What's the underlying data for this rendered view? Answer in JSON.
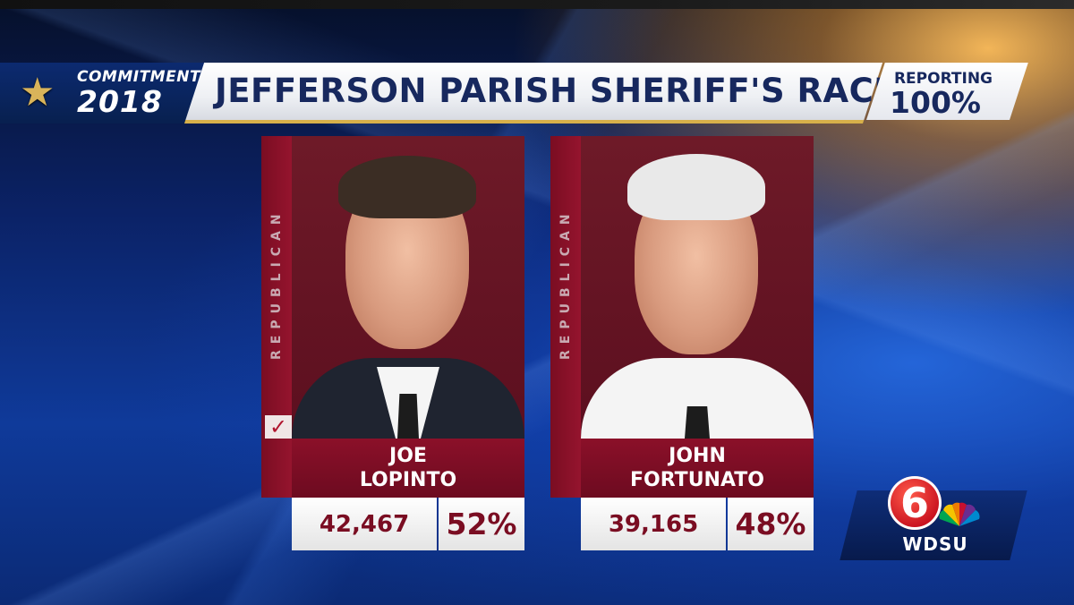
{
  "header": {
    "brand_line1": "COMMITMENT",
    "brand_line2": "2018",
    "title": "JEFFERSON PARISH SHERIFF'S RACE",
    "reporting_label": "REPORTING",
    "reporting_value": "100%"
  },
  "candidates": [
    {
      "party": "REPUBLICAN",
      "first_name": "JOE",
      "last_name": "LOPINTO",
      "votes": "42,467",
      "percent": "52%",
      "winner_check": "✓",
      "winner": true
    },
    {
      "party": "REPUBLICAN",
      "first_name": "JOHN",
      "last_name": "FORTUNATO",
      "votes": "39,165",
      "percent": "48%",
      "winner": false
    }
  ],
  "station": {
    "channel": "6",
    "call_sign": "WDSU",
    "logo_icon": "nbc-peacock-icon"
  },
  "colors": {
    "party_red": "#8b1029",
    "title_navy": "#17285e",
    "accent_gold": "#d7b04a"
  }
}
